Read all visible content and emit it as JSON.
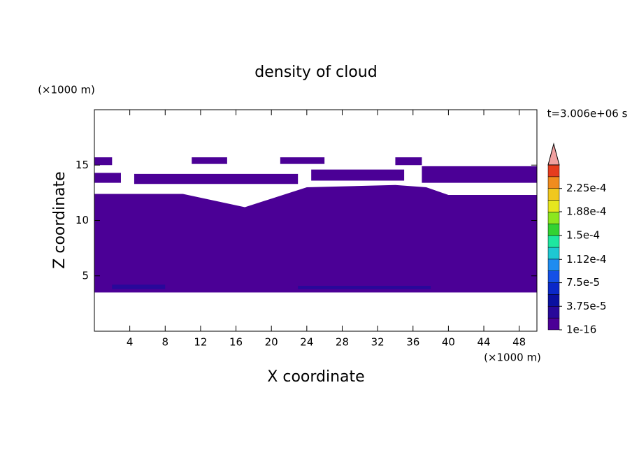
{
  "chart_data": {
    "type": "contour",
    "title": "density of cloud",
    "xlabel": "X coordinate",
    "ylabel": "Z coordinate",
    "x_unit": "(×1000 m)",
    "y_unit": "(×1000 m)",
    "time_label": "t=3.006e+06 s",
    "xlim": [
      0,
      50
    ],
    "ylim": [
      0,
      20
    ],
    "xticks": [
      4,
      8,
      12,
      16,
      20,
      24,
      28,
      32,
      36,
      40,
      44,
      48
    ],
    "yticks": [
      5,
      10,
      15
    ],
    "colorbar": {
      "lim": [
        1e-16,
        0.0002625
      ],
      "colors": [
        "#4b0096",
        "#28089a",
        "#0a10a0",
        "#0a28c8",
        "#1450e6",
        "#1e8cf0",
        "#1ec8d2",
        "#1ee6a0",
        "#32d232",
        "#8ce61e",
        "#e6e61e",
        "#f0c81e",
        "#f08c1e",
        "#e63c1e"
      ],
      "over_color": "#f0a0a0",
      "ticks": [
        {
          "value": 1e-16,
          "label": "1e-16"
        },
        {
          "value": 3.75e-05,
          "label": "3.75e-5"
        },
        {
          "value": 7.5e-05,
          "label": "7.5e-5"
        },
        {
          "value": 0.000112,
          "label": "1.12e-4"
        },
        {
          "value": 0.00015,
          "label": "1.5e-4"
        },
        {
          "value": 0.000188,
          "label": "1.88e-4"
        },
        {
          "value": 0.000225,
          "label": "2.25e-4"
        }
      ]
    },
    "contours": [
      {
        "level": 0,
        "x": [
          0,
          50,
          50,
          40,
          37.5,
          34,
          24,
          17,
          10,
          0
        ],
        "z": [
          3.5,
          3.5,
          12.3,
          12.3,
          13,
          13.2,
          13,
          11.2,
          12.4,
          12.4
        ]
      },
      {
        "level": 0,
        "x": [
          4.5,
          23,
          23,
          4.5
        ],
        "z": [
          13.3,
          13.3,
          14.2,
          14.2
        ]
      },
      {
        "level": 0,
        "x": [
          24.5,
          35,
          35,
          24.5
        ],
        "z": [
          13.6,
          13.6,
          14.6,
          14.6
        ]
      },
      {
        "level": 0,
        "x": [
          0,
          3,
          3,
          0
        ],
        "z": [
          13.4,
          13.4,
          14.3,
          14.3
        ]
      },
      {
        "level": 0,
        "x": [
          37,
          50,
          50,
          37
        ],
        "z": [
          13.4,
          13.4,
          14.9,
          14.9
        ]
      },
      {
        "level": 0,
        "x": [
          0,
          2,
          2,
          0
        ],
        "z": [
          15,
          15,
          15.7,
          15.7
        ]
      },
      {
        "level": 0,
        "x": [
          11,
          15,
          15,
          11
        ],
        "z": [
          15.1,
          15.1,
          15.7,
          15.7
        ]
      },
      {
        "level": 0,
        "x": [
          21,
          26,
          26,
          21
        ],
        "z": [
          15.1,
          15.1,
          15.7,
          15.7
        ]
      },
      {
        "level": 0,
        "x": [
          34,
          37,
          37,
          34
        ],
        "z": [
          15,
          15,
          15.7,
          15.7
        ]
      },
      {
        "level": 1,
        "x": [
          2,
          8,
          8,
          2
        ],
        "z": [
          3.8,
          3.8,
          4.2,
          4.2
        ]
      },
      {
        "level": 1,
        "x": [
          23,
          38,
          38,
          23
        ],
        "z": [
          3.8,
          3.8,
          4.1,
          4.1
        ]
      }
    ]
  }
}
